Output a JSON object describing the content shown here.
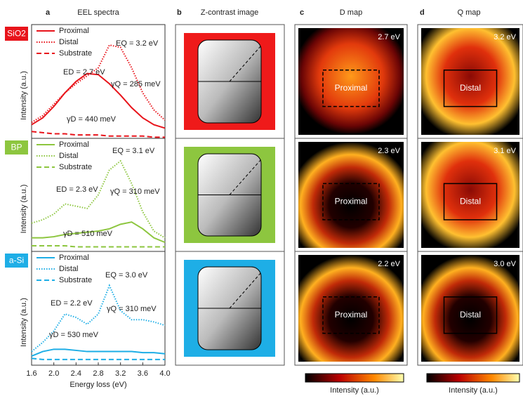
{
  "panel_letters": [
    "a",
    "b",
    "c",
    "d"
  ],
  "column_titles": [
    "EEL spectra",
    "Z-contrast image",
    "D map",
    "Q map"
  ],
  "chart_data": [
    {
      "type": "line",
      "sample": "SiO2",
      "color": "#e8141b",
      "ylabel": "Intensity (a.u.)",
      "xlim": [
        1.6,
        4.0
      ],
      "ylim": [
        0,
        1
      ],
      "x": [
        1.6,
        1.8,
        2.0,
        2.2,
        2.4,
        2.6,
        2.8,
        3.0,
        3.2,
        3.4,
        3.6,
        3.8,
        4.0
      ],
      "series": [
        {
          "name": "Proximal",
          "line_style": "solid",
          "values": [
            0.12,
            0.18,
            0.28,
            0.4,
            0.5,
            0.57,
            0.56,
            0.48,
            0.38,
            0.27,
            0.18,
            0.12,
            0.09
          ]
        },
        {
          "name": "Distal",
          "line_style": "dotted",
          "values": [
            0.14,
            0.2,
            0.3,
            0.4,
            0.48,
            0.55,
            0.62,
            0.82,
            0.8,
            0.62,
            0.4,
            0.25,
            0.16
          ]
        },
        {
          "name": "Substrate",
          "line_style": "dashed",
          "values": [
            0.06,
            0.05,
            0.04,
            0.04,
            0.03,
            0.03,
            0.03,
            0.02,
            0.02,
            0.02,
            0.02,
            0.01,
            0.01
          ]
        }
      ],
      "annotations": [
        "EQ = 3.2 eV",
        "ED = 2.7 eV",
        "γQ = 285 meV",
        "γD = 440 meV"
      ]
    },
    {
      "type": "line",
      "sample": "BP",
      "color": "#8dc63f",
      "ylabel": "Intensity (a.u.)",
      "xlim": [
        1.6,
        4.0
      ],
      "ylim": [
        0,
        1
      ],
      "x": [
        1.6,
        1.8,
        2.0,
        2.2,
        2.4,
        2.6,
        2.8,
        3.0,
        3.2,
        3.4,
        3.6,
        3.8,
        4.0
      ],
      "series": [
        {
          "name": "Proximal",
          "line_style": "solid",
          "values": [
            0.12,
            0.12,
            0.13,
            0.15,
            0.16,
            0.17,
            0.18,
            0.2,
            0.24,
            0.26,
            0.2,
            0.12,
            0.08
          ]
        },
        {
          "name": "Distal",
          "line_style": "dotted",
          "values": [
            0.25,
            0.28,
            0.33,
            0.42,
            0.4,
            0.38,
            0.5,
            0.72,
            0.8,
            0.6,
            0.35,
            0.18,
            0.12
          ]
        },
        {
          "name": "Substrate",
          "line_style": "dashed",
          "values": [
            0.05,
            0.05,
            0.05,
            0.05,
            0.04,
            0.04,
            0.04,
            0.04,
            0.04,
            0.04,
            0.04,
            0.04,
            0.04
          ]
        }
      ],
      "annotations": [
        "EQ = 3.1 eV",
        "ED = 2.3 eV",
        "γQ = 310 meV",
        "γD = 510 meV"
      ]
    },
    {
      "type": "line",
      "sample": "a-Si",
      "color": "#1eaee6",
      "ylabel": "Intensity (a.u.)",
      "xlabel": "Energy loss (eV)",
      "xlim": [
        1.6,
        4.0
      ],
      "ylim": [
        0,
        1
      ],
      "xticks": [
        1.6,
        {
          "value": 2,
          "label": "2.0"
        },
        2.4,
        2.8,
        3.2,
        3.6,
        {
          "value": 4,
          "label": "4.0"
        }
      ],
      "x": [
        1.6,
        1.8,
        2.0,
        2.2,
        2.4,
        2.6,
        2.8,
        3.0,
        3.2,
        3.4,
        3.6,
        3.8,
        4.0
      ],
      "series": [
        {
          "name": "Proximal",
          "line_style": "solid",
          "values": [
            0.08,
            0.12,
            0.14,
            0.14,
            0.13,
            0.12,
            0.12,
            0.12,
            0.12,
            0.12,
            0.11,
            0.11,
            0.1
          ]
        },
        {
          "name": "Distal",
          "line_style": "dotted",
          "values": [
            0.12,
            0.2,
            0.3,
            0.45,
            0.42,
            0.36,
            0.45,
            0.7,
            0.48,
            0.4,
            0.4,
            0.38,
            0.35
          ]
        },
        {
          "name": "Substrate",
          "line_style": "dashed",
          "values": [
            0.06,
            0.05,
            0.05,
            0.05,
            0.05,
            0.05,
            0.05,
            0.05,
            0.05,
            0.05,
            0.05,
            0.05,
            0.05
          ]
        }
      ],
      "annotations": [
        "EQ = 3.0 eV",
        "ED = 2.2 eV",
        "γQ = 310 meV",
        "γD = 530 meV"
      ]
    }
  ],
  "d_maps": [
    {
      "energy": "2.7 eV",
      "region": "Proximal"
    },
    {
      "energy": "2.3 eV",
      "region": "Proximal"
    },
    {
      "energy": "2.2 eV",
      "region": "Proximal"
    }
  ],
  "q_maps": [
    {
      "energy": "3.2 eV",
      "region": "Distal"
    },
    {
      "energy": "3.1 eV",
      "region": "Distal"
    },
    {
      "energy": "3.0 eV",
      "region": "Distal"
    }
  ],
  "colorbar_labels": [
    "Intensity (a.u.)",
    "Intensity (a.u.)"
  ]
}
